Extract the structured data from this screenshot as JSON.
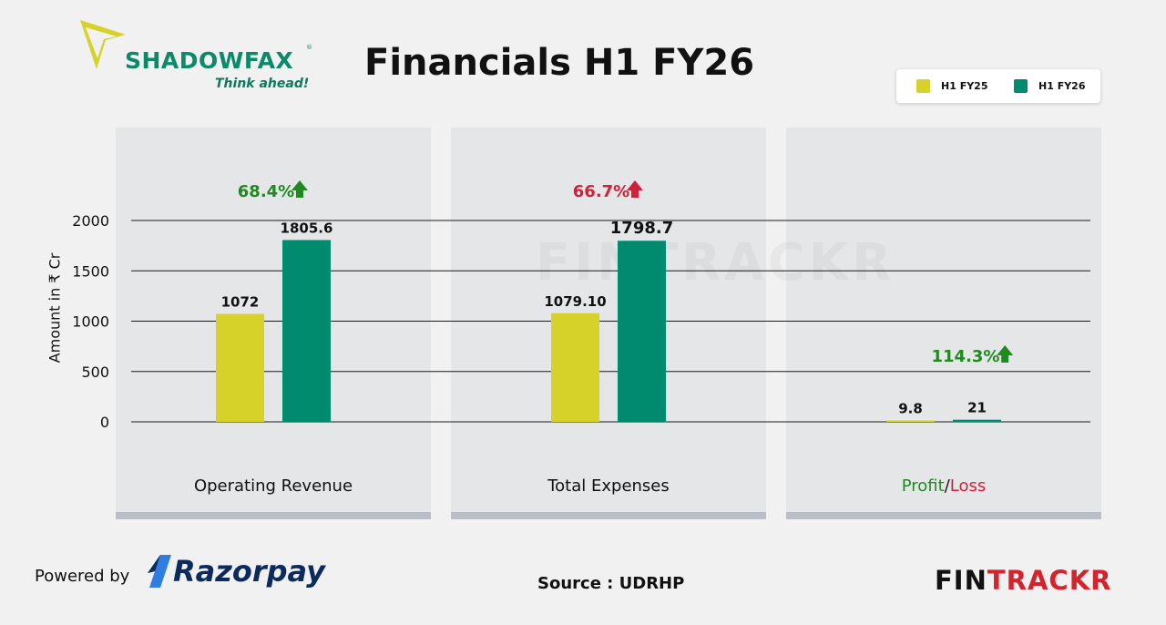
{
  "brand": {
    "name": "SHADOWFAX",
    "tagline": "Think ahead!",
    "reg": "®"
  },
  "title": "Financials H1 FY26",
  "legend": [
    {
      "label": "H1 FY25",
      "color": "#d6d22a"
    },
    {
      "label": "H1 FY26",
      "color": "#008b6f"
    }
  ],
  "ylabel": "Amount in ₹ Cr",
  "watermark": "FINTRACKR",
  "footer": {
    "powered_by": "Powered by",
    "razorpay": "Razorpay",
    "source": "Source : UDRHP",
    "logo_a": "FIN",
    "logo_b": "TRACKR"
  },
  "panel_labels": [
    "Operating Revenue",
    "Total Expenses"
  ],
  "profit_loss_label": {
    "profit": "Profit",
    "sep": "/",
    "loss": "Loss"
  },
  "colors": {
    "up_green": "#1f8a1f",
    "up_red": "#d0213a"
  },
  "chart_data": {
    "type": "bar",
    "ylabel": "Amount in ₹ Cr",
    "ylim": [
      0,
      2000
    ],
    "yticks": [
      0,
      500,
      1000,
      1500,
      2000
    ],
    "grid": true,
    "legend_position": "top-right",
    "categories": [
      "Operating Revenue",
      "Total Expenses",
      "Profit/Loss"
    ],
    "series": [
      {
        "name": "H1 FY25",
        "values": [
          1072,
          1079.1,
          9.8
        ],
        "labels": [
          "1072",
          "1079.10",
          "9.8"
        ]
      },
      {
        "name": "H1 FY26",
        "values": [
          1805.6,
          1798.7,
          21
        ],
        "labels": [
          "1805.6",
          "1798.7",
          "21"
        ]
      }
    ],
    "annotations": [
      {
        "text": "68.4%",
        "arrow": "up",
        "color": "green"
      },
      {
        "text": "66.7%",
        "arrow": "up",
        "color": "red"
      },
      {
        "text": "114.3%",
        "arrow": "up",
        "color": "green"
      }
    ]
  }
}
